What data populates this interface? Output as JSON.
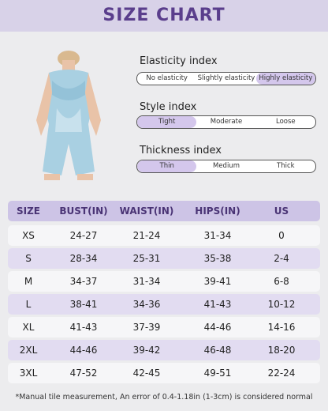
{
  "header": {
    "title": "SIZE CHART"
  },
  "indices": [
    {
      "label": "Elasticity index",
      "options": [
        "No elasticity",
        "Slightly elasticity",
        "Highly elasticity"
      ],
      "selected": 2
    },
    {
      "label": "Style index",
      "options": [
        "Tight",
        "Moderate",
        "Loose"
      ],
      "selected": 0
    },
    {
      "label": "Thickness index",
      "options": [
        "Thin",
        "Medium",
        "Thick"
      ],
      "selected": 0
    }
  ],
  "table": {
    "columns": [
      "SIZE",
      "BUST(IN)",
      "WAIST(IN)",
      "HIPS(IN)",
      "US"
    ],
    "rows": [
      [
        "XS",
        "24-27",
        "21-24",
        "31-34",
        "0"
      ],
      [
        "S",
        "28-34",
        "25-31",
        "35-38",
        "2-4"
      ],
      [
        "M",
        "34-37",
        "31-34",
        "39-41",
        "6-8"
      ],
      [
        "L",
        "38-41",
        "34-36",
        "41-43",
        "10-12"
      ],
      [
        "XL",
        "41-43",
        "37-39",
        "44-46",
        "14-16"
      ],
      [
        "2XL",
        "44-46",
        "39-42",
        "46-48",
        "18-20"
      ],
      [
        "3XL",
        "47-52",
        "42-45",
        "49-51",
        "22-24"
      ]
    ]
  },
  "footnote": "*Manual tile measurement, An error of 0.4-1.18in (1-3cm) is considered normal"
}
